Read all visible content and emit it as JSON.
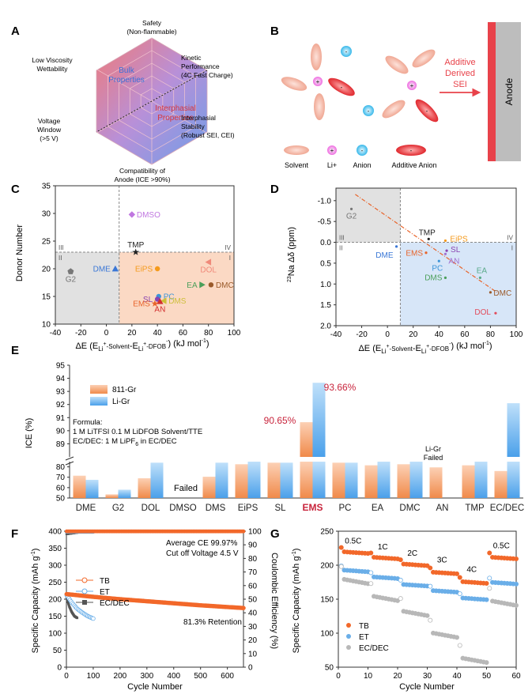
{
  "panel_labels": [
    "A",
    "B",
    "C",
    "D",
    "E",
    "F",
    "G"
  ],
  "panel_a": {
    "vertices": {
      "top": [
        "Safety",
        "(Non-flammable)"
      ],
      "upper_right": [
        "Kinetic",
        "Performance",
        "(4C Fast Charge)"
      ],
      "lower_right": [
        "Interphasial",
        "Stability",
        "(Robust SEI, CEI)"
      ],
      "bottom": [
        "Compatibility of",
        "Anode (ICE >90%)"
      ],
      "lower_left": [
        "Voltage",
        "Window",
        "(>5 V)"
      ],
      "upper_left": [
        "Low Viscosity",
        "Wettability"
      ]
    },
    "bulk_label": [
      "Bulk",
      "Properties"
    ],
    "interphasial_label": [
      "Interphasial",
      "Properties"
    ],
    "colors": {
      "red": "#e8686a",
      "blue": "#6f9ee8"
    }
  },
  "panel_b": {
    "arrow_label": [
      "Additive",
      "Derived",
      "SEI"
    ],
    "anode_label": "Anode",
    "legend": [
      "Solvent",
      "Li+",
      "Anion",
      "Additive Anion"
    ],
    "li_symbol": "+",
    "anion_symbol": "-",
    "colors": {
      "solvent": "#f3b3a0",
      "li": "#ee7ce0",
      "anion": "#4cc3ee",
      "additive": "#e8343a",
      "sei": "#e8424a",
      "anode": "#bdbdbd"
    }
  },
  "panel_c": {
    "chart_data": {
      "type": "scatter",
      "xlabel": "ΔE (E_Li+-Solvent - E_Li+-DFOB-) (kJ mol-1)",
      "xlabel_parts": [
        "ΔE (E",
        "Li",
        "+",
        "-Solvent",
        "-E",
        "Li",
        "+",
        "-DFOB",
        "-",
        ") (kJ mol",
        "-1",
        ")"
      ],
      "ylabel": "Donor Number",
      "xlim": [
        -40,
        100
      ],
      "ylim": [
        10,
        35
      ],
      "xticks": [
        -40,
        -20,
        0,
        20,
        40,
        60,
        80,
        100
      ],
      "yticks": [
        10,
        15,
        20,
        25,
        30,
        35
      ],
      "divider_x": 10,
      "divider_y": 23,
      "quadrants": [
        "I",
        "II",
        "III",
        "IV"
      ],
      "points": [
        {
          "name": "DMSO",
          "x": 20,
          "y": 29.8,
          "color": "#c077e0",
          "marker": "diamond",
          "label_side": "right"
        },
        {
          "name": "TMP",
          "x": 23,
          "y": 23,
          "color": "#222222",
          "marker": "star",
          "label_side": "top"
        },
        {
          "name": "DOL",
          "x": 80,
          "y": 21.2,
          "color": "#f08a7a",
          "marker": "tri-left",
          "label_side": "bottom"
        },
        {
          "name": "EiPS",
          "x": 40,
          "y": 20,
          "color": "#f59a1c",
          "marker": "circle",
          "label_side": "left"
        },
        {
          "name": "DME",
          "x": 7,
          "y": 20,
          "color": "#3a77d6",
          "marker": "tri-up",
          "label_side": "left"
        },
        {
          "name": "G2",
          "x": -28,
          "y": 19.5,
          "color": "#777777",
          "marker": "pentagon",
          "label_side": "bottom"
        },
        {
          "name": "EA",
          "x": 75,
          "y": 17.1,
          "color": "#4b9f5a",
          "marker": "tri-right",
          "label_side": "left"
        },
        {
          "name": "DMC",
          "x": 82,
          "y": 17.1,
          "color": "#9a5a2a",
          "marker": "circle",
          "label_side": "right"
        },
        {
          "name": "PC",
          "x": 41,
          "y": 15,
          "color": "#3e95d8",
          "marker": "circle",
          "label_side": "right"
        },
        {
          "name": "SL",
          "x": 40,
          "y": 14.5,
          "color": "#8a44b0",
          "marker": "circle",
          "label_side": "left"
        },
        {
          "name": "DMS",
          "x": 45,
          "y": 14.2,
          "color": "#cdbf3a",
          "marker": "tri-left",
          "label_side": "right"
        },
        {
          "name": "AN",
          "x": 42,
          "y": 14.1,
          "color": "#d32f2f",
          "marker": "tri-up",
          "label_side": "bottom"
        },
        {
          "name": "EMS",
          "x": 38,
          "y": 13.7,
          "color": "#e8642a",
          "marker": "star",
          "label_side": "left"
        }
      ]
    }
  },
  "panel_d": {
    "chart_data": {
      "type": "scatter",
      "xlabel": "ΔE (E_Li+-Solvent - E_Li+-DFOB-) (kJ mol-1)",
      "ylabel": "23Na Δδ (ppm)",
      "ylabel_parts": [
        "23",
        "Na Δδ (ppm)"
      ],
      "xlim": [
        -40,
        100
      ],
      "ylim": [
        -1.3,
        2.0
      ],
      "y_inverted": true,
      "xticks": [
        -40,
        -20,
        0,
        20,
        40,
        60,
        80,
        100
      ],
      "yticks": [
        "-1.0",
        "-0.5",
        "0.0",
        "0.5",
        "1.0",
        "1.5",
        "2.0"
      ],
      "divider_x": 10,
      "divider_y": 0.0,
      "quadrants": [
        "I",
        "II",
        "III",
        "IV"
      ],
      "trend_line": {
        "x0": -25,
        "y0": -1.15,
        "x1": 85,
        "y1": 1.2
      },
      "points": [
        {
          "name": "G2",
          "x": -28,
          "y": -0.8,
          "color": "#777777"
        },
        {
          "name": "DME",
          "x": 7,
          "y": 0.1,
          "color": "#3a77d6"
        },
        {
          "name": "TMP",
          "x": 32,
          "y": -0.08,
          "color": "#222222"
        },
        {
          "name": "EiPS",
          "x": 45,
          "y": -0.04,
          "color": "#f59a1c"
        },
        {
          "name": "EMS",
          "x": 30,
          "y": 0.25,
          "color": "#e8642a"
        },
        {
          "name": "SL",
          "x": 46,
          "y": 0.2,
          "color": "#8a44b0"
        },
        {
          "name": "AN",
          "x": 45,
          "y": 0.28,
          "color": "#a070d0"
        },
        {
          "name": "PC",
          "x": 40,
          "y": 0.45,
          "color": "#3e95d8"
        },
        {
          "name": "DMS",
          "x": 45,
          "y": 0.85,
          "color": "#4b9f5a"
        },
        {
          "name": "EA",
          "x": 72,
          "y": 0.85,
          "color": "#5aaa8a"
        },
        {
          "name": "DMC",
          "x": 80,
          "y": 1.2,
          "color": "#9a5a2a"
        },
        {
          "name": "DOL",
          "x": 84,
          "y": 1.7,
          "color": "#e24a5a"
        }
      ]
    }
  },
  "panel_e": {
    "chart_data": {
      "type": "bar",
      "ylabel": "ICE (%)",
      "broken_axis": true,
      "lower_ylim": [
        50,
        85
      ],
      "lower_yticks": [
        50,
        60,
        70,
        80
      ],
      "upper_ylim": [
        88,
        95
      ],
      "upper_yticks": [
        89,
        90,
        91,
        92,
        93,
        94,
        95
      ],
      "categories": [
        "DME",
        "G2",
        "DOL",
        "DMSO",
        "DMS",
        "EiPS",
        "SL",
        "EMS",
        "PC",
        "EA",
        "DMC",
        "AN",
        "TMP",
        "EC/DEC"
      ],
      "highlight_category": "EMS",
      "series": [
        {
          "name": "811-Gr",
          "color": "#f59a64",
          "values": [
            71.5,
            53.5,
            69,
            null,
            70.5,
            82.5,
            84,
            90.65,
            84,
            81.5,
            82.5,
            79.5,
            81.5,
            76
          ]
        },
        {
          "name": "Li-Gr",
          "color": "#64acec",
          "values": [
            67.5,
            58,
            84,
            null,
            84,
            85,
            84,
            93.66,
            84,
            85,
            85,
            null,
            85,
            92.1
          ]
        }
      ],
      "annotations": {
        "failed": "Failed",
        "ligr_failed": [
          "Li-Gr",
          "Failed"
        ],
        "ems_811": "90.65%",
        "ems_ligr": "93.66%"
      },
      "formula_lines": [
        "Formula:",
        "1 M LiTFSI 0.1 M LiDFOB Solvent/TTE",
        "EC/DEC: 1 M LiPF6 in EC/DEC"
      ],
      "formula_line3_parts": [
        "EC/DEC: 1 M LiPF",
        "6",
        " in EC/DEC"
      ]
    }
  },
  "panel_f": {
    "chart_data": {
      "type": "line",
      "xlabel": "Cycle Number",
      "ylabel": "Specific Capacity (mAh g-1)",
      "y2label": "Coulombic Efficiency (%)",
      "xlim": [
        0,
        660
      ],
      "ylim": [
        0,
        400
      ],
      "y2lim": [
        0,
        100
      ],
      "xticks": [
        0,
        100,
        200,
        300,
        400,
        500,
        600
      ],
      "yticks": [
        0,
        50,
        100,
        150,
        200,
        250,
        300,
        350,
        400
      ],
      "y2ticks": [
        0,
        10,
        20,
        30,
        40,
        50,
        60,
        70,
        80,
        90,
        100
      ],
      "legend": [
        "TB",
        "ET",
        "EC/DEC"
      ],
      "texts": [
        "Average CE 99.97%",
        "Cut off Voltage 4.5 V",
        "81.3% Retention"
      ],
      "series": [
        {
          "name": "TB",
          "color": "#f2682a",
          "capacity": {
            "x": [
              1,
              100,
              200,
              300,
              400,
              500,
              600,
              660
            ],
            "y": [
              215,
              207,
              200,
              194,
              188,
              182,
              177,
              174
            ]
          },
          "ce": {
            "x": [
              1,
              660
            ],
            "y": [
              99.9,
              99.9
            ]
          }
        },
        {
          "name": "ET",
          "color": "#6aaee8",
          "capacity": {
            "x": [
              1,
              20,
              40,
              60,
              80,
              100
            ],
            "y": [
              212,
              190,
              172,
              160,
              150,
              143
            ]
          },
          "ce": {
            "x": [
              1,
              100
            ],
            "y": [
              99.5,
              99.5
            ]
          }
        },
        {
          "name": "EC/DEC",
          "color": "#555555",
          "capacity": {
            "x": [
              1,
              10,
              20,
              30,
              40
            ],
            "y": [
              205,
              180,
              162,
              150,
              145
            ]
          },
          "ce": {
            "x": [
              1,
              40
            ],
            "y": [
              98,
              99
            ]
          }
        }
      ]
    }
  },
  "panel_g": {
    "chart_data": {
      "type": "scatter",
      "xlabel": "Cycle Number",
      "ylabel": "Specific Capacity (mAh g-1)",
      "xlim": [
        0,
        60
      ],
      "ylim": [
        50,
        250
      ],
      "xticks": [
        0,
        10,
        20,
        30,
        40,
        50,
        60
      ],
      "yticks": [
        50,
        100,
        150,
        200,
        250
      ],
      "rate_labels": [
        "0.5C",
        "1C",
        "2C",
        "3C",
        "4C",
        "0.5C"
      ],
      "legend": [
        "TB",
        "ET",
        "EC/DEC"
      ],
      "series": [
        {
          "name": "TB",
          "color": "#f2682a",
          "segments": [
            220,
            212,
            202,
            190,
            176,
            212
          ]
        },
        {
          "name": "ET",
          "color": "#6aaee8",
          "segments": [
            193,
            183,
            172,
            163,
            152,
            175
          ]
        },
        {
          "name": "EC/DEC",
          "color": "#b8b8b8",
          "segments": [
            180,
            155,
            133,
            101,
            64,
            148
          ]
        }
      ]
    }
  }
}
